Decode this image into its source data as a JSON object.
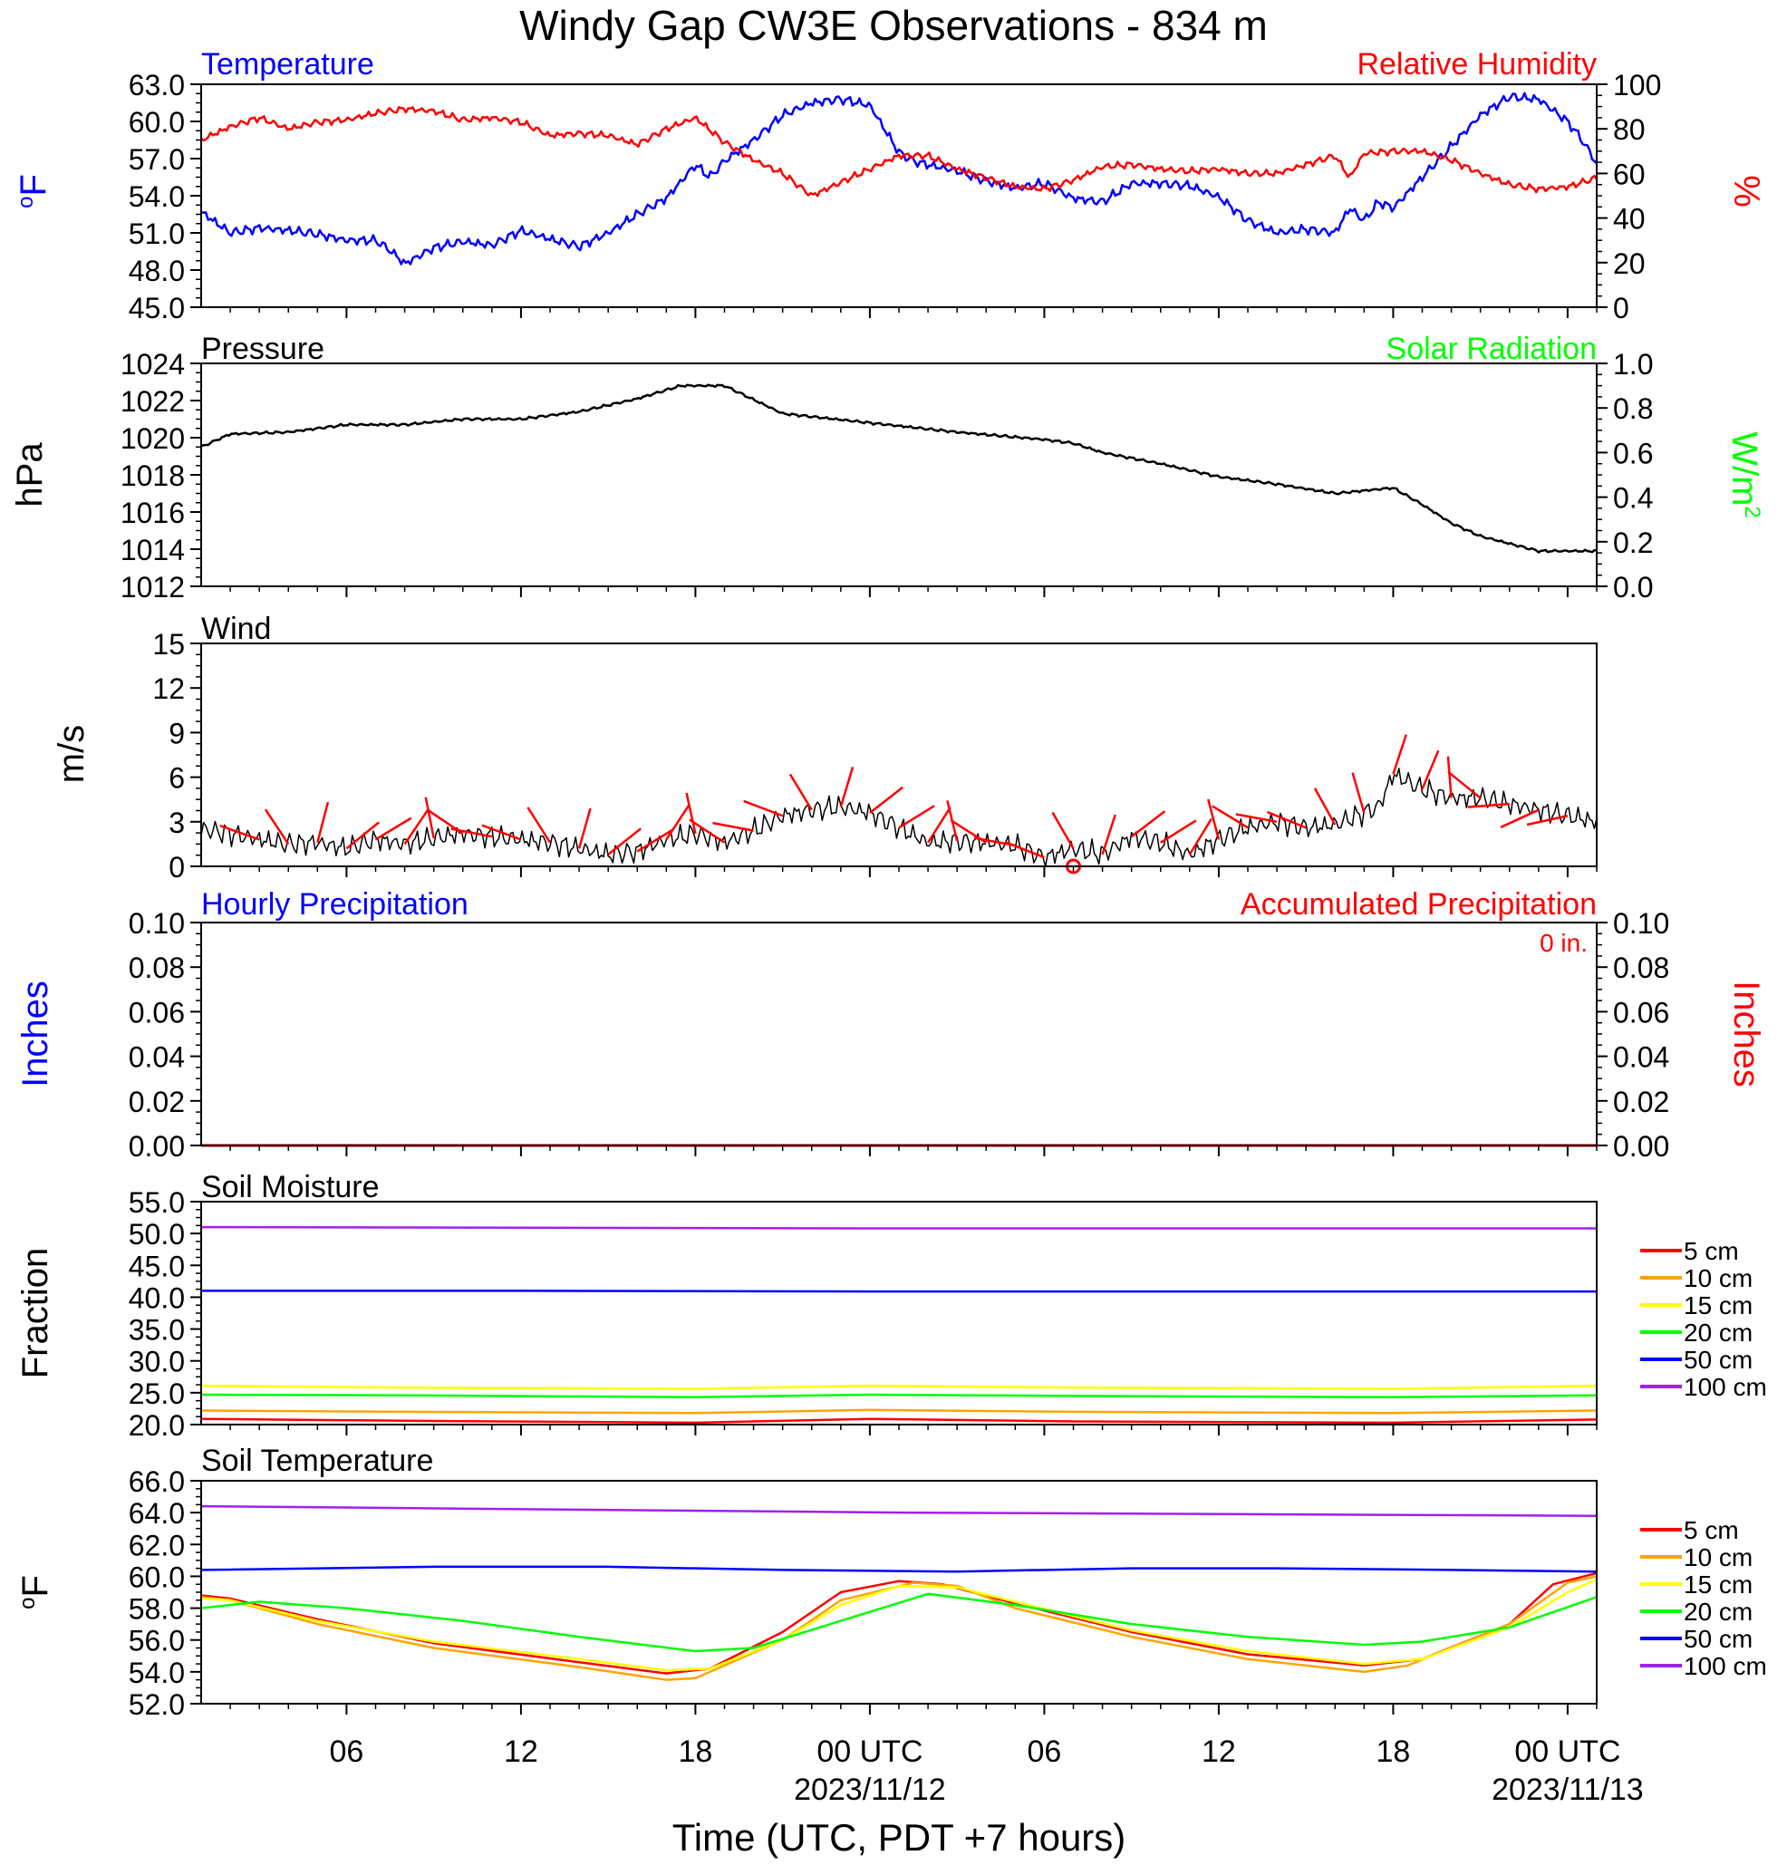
{
  "title": "Windy Gap CW3E Observations - 834 m",
  "xaxis": {
    "ticks": [
      "06",
      "12",
      "18",
      "00 UTC",
      "06",
      "12",
      "18",
      "00 UTC"
    ],
    "tick_hours": [
      6,
      12,
      18,
      24,
      30,
      36,
      42,
      48
    ],
    "date_labels": [
      "2023/11/12",
      "2023/11/13"
    ],
    "date_hours": [
      24,
      48
    ],
    "label": "Time (UTC, PDT +7 hours)",
    "range_hours": [
      1,
      49
    ]
  },
  "colors": {
    "blue": "#0000ff",
    "red": "#ff0000",
    "green": "#00ff00",
    "black": "#000000",
    "5cm": "#ff0000",
    "10cm": "#ffa500",
    "15cm": "#ffff00",
    "20cm": "#00ff00",
    "50cm": "#0000ff",
    "100cm": "#a020f0"
  },
  "panels": {
    "temp_rh": {
      "left_title": "Temperature",
      "right_title": "Relative Humidity",
      "left_unit": "oF",
      "right_unit": "%",
      "left_ticks": [
        "45.0",
        "48.0",
        "51.0",
        "54.0",
        "57.0",
        "60.0",
        "63.0"
      ],
      "right_ticks": [
        "0",
        "20",
        "40",
        "60",
        "80",
        "100"
      ]
    },
    "pressure": {
      "left_title": "Pressure",
      "right_title": "Solar Radiation",
      "left_unit": "hPa",
      "right_unit": "W/m2",
      "left_ticks": [
        "1012",
        "1014",
        "1016",
        "1018",
        "1020",
        "1022",
        "1024"
      ],
      "right_ticks": [
        "0.0",
        "0.2",
        "0.4",
        "0.6",
        "0.8",
        "1.0"
      ]
    },
    "wind": {
      "title": "Wind",
      "unit": "m/s",
      "ticks": [
        "0",
        "3",
        "6",
        "9",
        "12",
        "15"
      ]
    },
    "precip": {
      "left_title": "Hourly Precipitation",
      "right_title": "Accumulated Precipitation",
      "accum_total": "0 in.",
      "left_unit": "Inches",
      "right_unit": "Inches",
      "ticks": [
        "0.00",
        "0.02",
        "0.04",
        "0.06",
        "0.08",
        "0.10"
      ]
    },
    "soil_moisture": {
      "title": "Soil Moisture",
      "unit": "Fraction",
      "ticks": [
        "20.0",
        "25.0",
        "30.0",
        "35.0",
        "40.0",
        "45.0",
        "50.0",
        "55.0"
      ],
      "legend": [
        "5 cm",
        "10 cm",
        "15 cm",
        "20 cm",
        "50 cm",
        "100 cm"
      ]
    },
    "soil_temp": {
      "title": "Soil Temperature",
      "unit": "oF",
      "ticks": [
        "52.0",
        "54.0",
        "56.0",
        "58.0",
        "60.0",
        "62.0",
        "64.0",
        "66.0"
      ],
      "legend": [
        "5 cm",
        "10 cm",
        "15 cm",
        "20 cm",
        "50 cm",
        "100 cm"
      ]
    }
  },
  "chart_data": [
    {
      "type": "line",
      "title": "Temperature / Relative Humidity",
      "x_unit": "hours since 2023-11-11 00 UTC",
      "ylim_left": [
        45,
        63
      ],
      "ylim_right": [
        0,
        100
      ],
      "series": [
        {
          "name": "Temperature",
          "axis": "left",
          "color": "#0000ff",
          "x": [
            1,
            2,
            3,
            4,
            5,
            6,
            7,
            7.5,
            8,
            9,
            10,
            11,
            12,
            13,
            14,
            15,
            16,
            17,
            18,
            18.5,
            19,
            20,
            21,
            22,
            23,
            24,
            25,
            25.5,
            26,
            27,
            28,
            29,
            30,
            31,
            32,
            33,
            34,
            35,
            36,
            37,
            38,
            39,
            40,
            40.5,
            41,
            41.5,
            42,
            43,
            44,
            45,
            46,
            47,
            48,
            48.5,
            49
          ],
          "y": [
            52.7,
            51.0,
            51.4,
            51.2,
            50.9,
            50.4,
            50.4,
            49.6,
            48.5,
            49.8,
            50.3,
            50.0,
            51.2,
            50.5,
            49.9,
            51.0,
            52.5,
            53.8,
            56.5,
            55.5,
            56.8,
            58.5,
            60.5,
            61.5,
            61.8,
            61.3,
            57.5,
            56.8,
            56.5,
            56.0,
            55.2,
            54.6,
            55.0,
            53.8,
            53.5,
            55.0,
            55.0,
            54.8,
            53.9,
            52.0,
            51.0,
            51.3,
            51.0,
            53.0,
            52.0,
            53.5,
            53.0,
            55.5,
            58.0,
            60.5,
            62.0,
            61.8,
            60.0,
            58.5,
            56.6
          ]
        },
        {
          "name": "Relative Humidity",
          "axis": "right",
          "color": "#ff0000",
          "x": [
            1,
            2,
            3,
            4,
            5,
            6,
            7,
            8,
            9,
            10,
            11,
            12,
            13,
            14,
            15,
            16,
            17,
            18,
            19,
            20,
            21,
            22,
            23,
            24,
            25,
            26,
            27,
            28,
            29,
            30,
            31,
            32,
            33,
            34,
            35,
            36,
            37,
            38,
            39,
            40,
            40.5,
            41,
            42,
            43,
            44,
            45,
            46,
            47,
            48,
            49
          ],
          "y": [
            75,
            81,
            85,
            80,
            83,
            84,
            87,
            89,
            88,
            84,
            85,
            83,
            77,
            78,
            77,
            73,
            80,
            85,
            74,
            66,
            60,
            50,
            56,
            62,
            68,
            68,
            62,
            58,
            54,
            53,
            57,
            63,
            64,
            62,
            61,
            62,
            60,
            60,
            64,
            68,
            58,
            69,
            70,
            70,
            66,
            60,
            55,
            53,
            54,
            58
          ]
        }
      ]
    },
    {
      "type": "line",
      "title": "Pressure",
      "x_unit": "hours since 2023-11-11 00 UTC",
      "ylim_left": [
        1012,
        1024
      ],
      "ylim_right": [
        0.0,
        1.0
      ],
      "series": [
        {
          "name": "Pressure",
          "axis": "left",
          "color": "#000000",
          "x": [
            1,
            2,
            4,
            6,
            8,
            10,
            12,
            14,
            16,
            17.5,
            19,
            21,
            24,
            27,
            30,
            31,
            32,
            34,
            36,
            38,
            40,
            42,
            43,
            44,
            45,
            46,
            47,
            48,
            49
          ],
          "y": [
            1019.5,
            1020.2,
            1020.3,
            1020.7,
            1020.7,
            1021.0,
            1021.0,
            1021.4,
            1022.1,
            1022.8,
            1022.8,
            1021.3,
            1020.8,
            1020.3,
            1019.9,
            1019.7,
            1019.2,
            1018.6,
            1017.9,
            1017.5,
            1017.0,
            1017.3,
            1016.4,
            1015.4,
            1014.7,
            1014.3,
            1013.9,
            1013.9,
            1013.9
          ]
        }
      ]
    },
    {
      "type": "line",
      "title": "Wind",
      "x_unit": "hours since 2023-11-11 00 UTC",
      "ylim": [
        0,
        15
      ],
      "series": [
        {
          "name": "Wind speed",
          "color": "#000000",
          "x": [
            1,
            2,
            3,
            4,
            5,
            6,
            7,
            8,
            9,
            10,
            11,
            12,
            13,
            14,
            15,
            16,
            17,
            18,
            19,
            20,
            21,
            22,
            23,
            24,
            25,
            26,
            27,
            28,
            29,
            30,
            31,
            32,
            33,
            34,
            35,
            36,
            37,
            38,
            39,
            40,
            41,
            41.5,
            42,
            43,
            44,
            45,
            46,
            47,
            48,
            49
          ],
          "y": [
            2.5,
            2.2,
            1.8,
            1.5,
            1.6,
            1.2,
            1.8,
            1.5,
            1.9,
            2.2,
            2.0,
            1.8,
            1.6,
            1.2,
            0.8,
            1.0,
            1.8,
            2.2,
            1.6,
            2.4,
            3.4,
            3.8,
            4.0,
            3.6,
            2.6,
            1.6,
            1.7,
            1.6,
            1.4,
            0.6,
            1.2,
            0.8,
            2.0,
            1.6,
            0.8,
            1.8,
            2.6,
            3.0,
            2.6,
            2.8,
            3.6,
            4.0,
            6.2,
            5.2,
            4.6,
            4.6,
            4.2,
            3.8,
            3.4,
            3.0
          ]
        }
      ]
    },
    {
      "type": "line",
      "title": "Precipitation",
      "x_unit": "hours since 2023-11-11 00 UTC",
      "ylim": [
        0,
        0.1
      ],
      "series": [
        {
          "name": "Hourly Precipitation",
          "color": "#0000ff",
          "x": [
            1,
            49
          ],
          "y": [
            0,
            0
          ]
        },
        {
          "name": "Accumulated Precipitation",
          "color": "#ff0000",
          "x": [
            1,
            49
          ],
          "y": [
            0,
            0
          ]
        }
      ]
    },
    {
      "type": "line",
      "title": "Soil Moisture",
      "x_unit": "hours since 2023-11-11 00 UTC",
      "ylim": [
        20,
        55
      ],
      "series": [
        {
          "name": "5 cm",
          "color": "#ff0000",
          "x": [
            1,
            8,
            18,
            24,
            31,
            42,
            49
          ],
          "y": [
            20.9,
            20.6,
            20.3,
            20.9,
            20.5,
            20.3,
            20.8
          ]
        },
        {
          "name": "10 cm",
          "color": "#ffa500",
          "x": [
            1,
            8,
            18,
            24,
            31,
            42,
            49
          ],
          "y": [
            22.2,
            22.0,
            21.8,
            22.3,
            22.0,
            21.8,
            22.2
          ]
        },
        {
          "name": "15 cm",
          "color": "#ffff00",
          "x": [
            1,
            8,
            18,
            24,
            31,
            42,
            49
          ],
          "y": [
            26.1,
            25.8,
            25.6,
            26.1,
            25.8,
            25.6,
            26.1
          ]
        },
        {
          "name": "20 cm",
          "color": "#00ff00",
          "x": [
            1,
            8,
            18,
            24,
            31,
            42,
            49
          ],
          "y": [
            24.7,
            24.6,
            24.3,
            24.7,
            24.5,
            24.3,
            24.6
          ]
        },
        {
          "name": "50 cm",
          "color": "#0000ff",
          "x": [
            1,
            12,
            24,
            36,
            49
          ],
          "y": [
            41.0,
            41.0,
            40.9,
            40.9,
            40.9
          ]
        },
        {
          "name": "100 cm",
          "color": "#a020f0",
          "x": [
            1,
            12,
            24,
            36,
            49
          ],
          "y": [
            51.0,
            50.9,
            50.8,
            50.8,
            50.8
          ]
        }
      ]
    },
    {
      "type": "line",
      "title": "Soil Temperature",
      "x_unit": "hours since 2023-11-11 00 UTC",
      "ylim": [
        52,
        66
      ],
      "series": [
        {
          "name": "5 cm",
          "color": "#ff0000",
          "x": [
            1,
            2,
            5,
            9,
            14,
            17,
            18.5,
            21,
            23,
            25,
            26.5,
            29,
            33,
            37,
            41,
            43,
            46,
            47.5,
            49
          ],
          "y": [
            58.8,
            58.6,
            57.3,
            55.8,
            54.6,
            53.9,
            54.2,
            56.5,
            59.0,
            59.7,
            59.5,
            58.3,
            56.5,
            55.1,
            54.4,
            54.8,
            57.0,
            59.5,
            60.2
          ]
        },
        {
          "name": "10 cm",
          "color": "#ffa500",
          "x": [
            1,
            2,
            5,
            9,
            14,
            17,
            18,
            21,
            23,
            25.5,
            27,
            29,
            33,
            37,
            41,
            42.5,
            46,
            48,
            49
          ],
          "y": [
            58.7,
            58.5,
            57.0,
            55.5,
            54.3,
            53.5,
            53.6,
            56.0,
            58.5,
            59.6,
            59.4,
            58.0,
            56.2,
            54.8,
            54.0,
            54.4,
            57.0,
            59.6,
            60.0
          ]
        },
        {
          "name": "15 cm",
          "color": "#ffff00",
          "x": [
            1,
            2,
            5,
            9,
            14,
            17,
            18.5,
            21,
            23,
            25,
            27,
            29,
            33,
            37,
            41,
            43,
            46,
            48,
            49
          ],
          "y": [
            58.6,
            58.5,
            57.2,
            55.9,
            54.8,
            54.1,
            54.2,
            56.0,
            58.2,
            59.4,
            59.3,
            58.4,
            56.6,
            55.3,
            54.5,
            54.8,
            56.8,
            59.0,
            59.8
          ]
        },
        {
          "name": "20 cm",
          "color": "#00ff00",
          "x": [
            1,
            3,
            6,
            10,
            14,
            18,
            20,
            23,
            26,
            29,
            33,
            37,
            41,
            43,
            46,
            49
          ],
          "y": [
            58.0,
            58.4,
            58.0,
            57.2,
            56.2,
            55.3,
            55.5,
            57.2,
            58.9,
            58.2,
            57.0,
            56.2,
            55.7,
            55.9,
            56.8,
            58.7
          ]
        },
        {
          "name": "50 cm",
          "color": "#0000ff",
          "x": [
            1,
            9,
            15,
            21,
            27,
            33,
            38,
            44,
            49
          ],
          "y": [
            60.4,
            60.6,
            60.6,
            60.4,
            60.3,
            60.5,
            60.5,
            60.4,
            60.3
          ]
        },
        {
          "name": "100 cm",
          "color": "#a020f0",
          "x": [
            1,
            13,
            25,
            37,
            49
          ],
          "y": [
            64.4,
            64.2,
            64.0,
            63.9,
            63.8
          ]
        }
      ]
    }
  ]
}
